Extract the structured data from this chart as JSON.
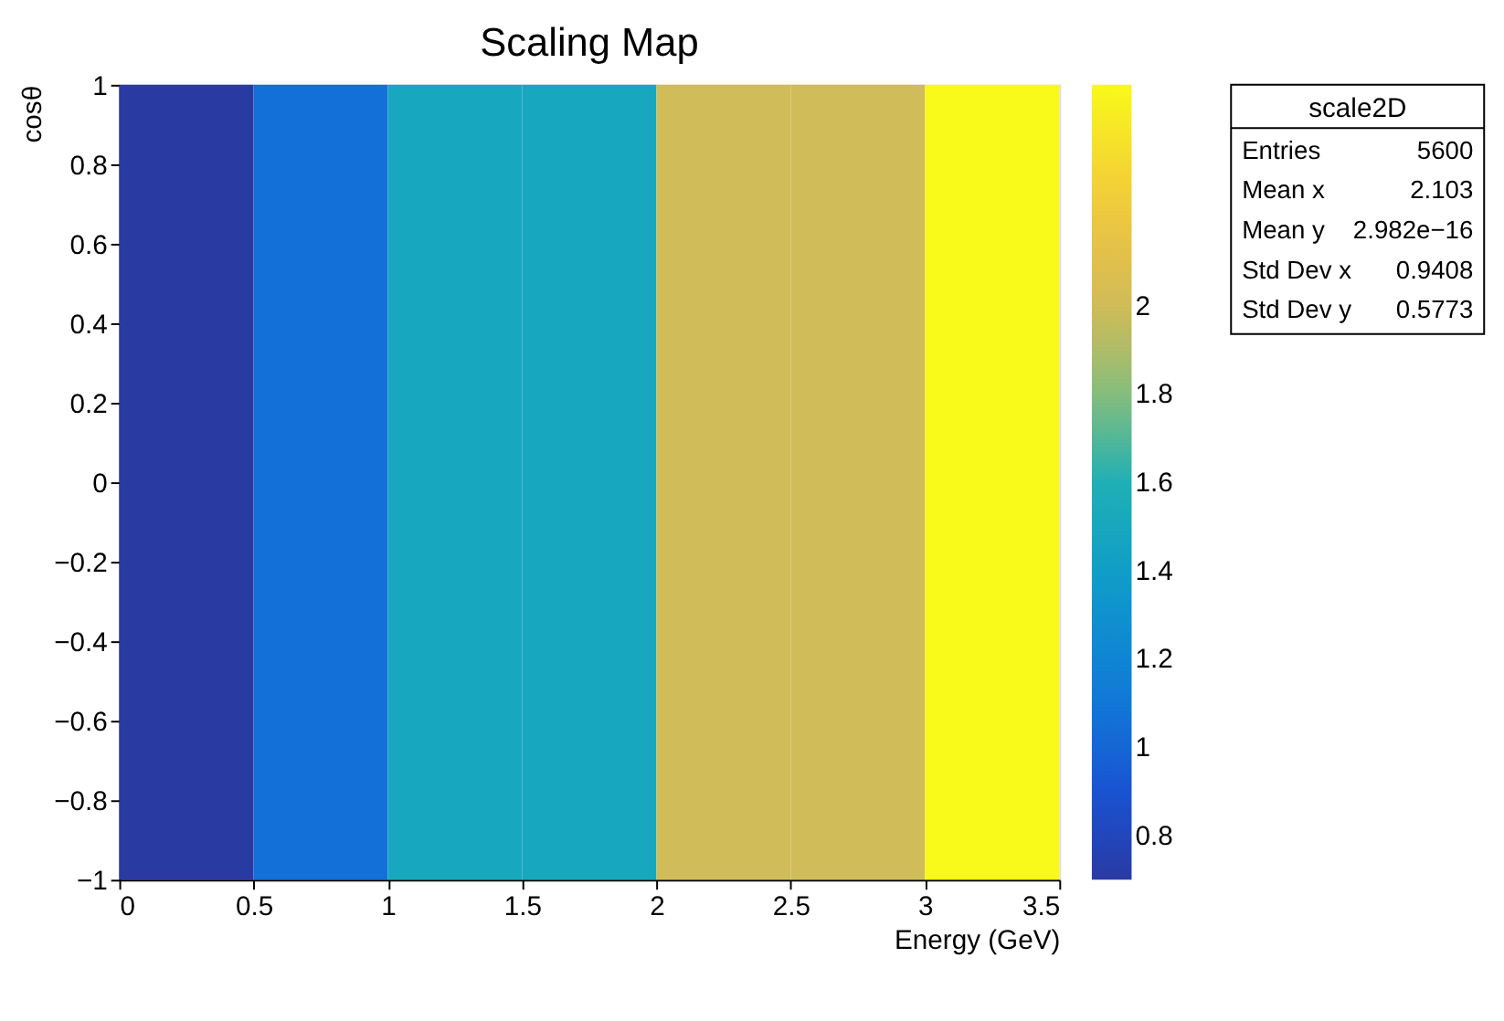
{
  "chart_data": {
    "type": "heatmap",
    "title": "Scaling Map",
    "xlabel": "Energy (GeV)",
    "ylabel": "cosθ",
    "x": [
      0.25,
      0.75,
      1.25,
      1.75,
      2.25,
      2.75,
      3.25
    ],
    "cells": [
      [
        0.7,
        1.05,
        1.5,
        1.5,
        2.0,
        2.0,
        2.5
      ]
    ],
    "xlim": [
      0,
      3.5
    ],
    "xticks": [
      0,
      0.5,
      1,
      1.5,
      2,
      2.5,
      3,
      3.5
    ],
    "ylim": [
      -1,
      1
    ],
    "yticks": [
      -1,
      -0.8,
      -0.6,
      -0.4,
      -0.2,
      0,
      0.2,
      0.4,
      0.6,
      0.8,
      1
    ],
    "clim": [
      0.7,
      2.5
    ],
    "cticks": [
      0.8,
      1,
      1.2,
      1.4,
      1.6,
      1.8,
      2
    ],
    "colors": [
      "#2a3aa3",
      "#1a4fd0",
      "#1272d8",
      "#0f8ad2",
      "#10a0c6",
      "#20afb5",
      "#7cbd80",
      "#c9bb5c",
      "#e8c048",
      "#f5d830",
      "#f9f91a"
    ],
    "grid": false,
    "annotations": [
      "scale2D",
      "Entries",
      "5600",
      "Mean x",
      "2.103",
      "Mean y",
      "2.982e−16",
      "Std Dev x",
      "0.9408",
      "Std Dev y",
      "0.5773"
    ]
  }
}
